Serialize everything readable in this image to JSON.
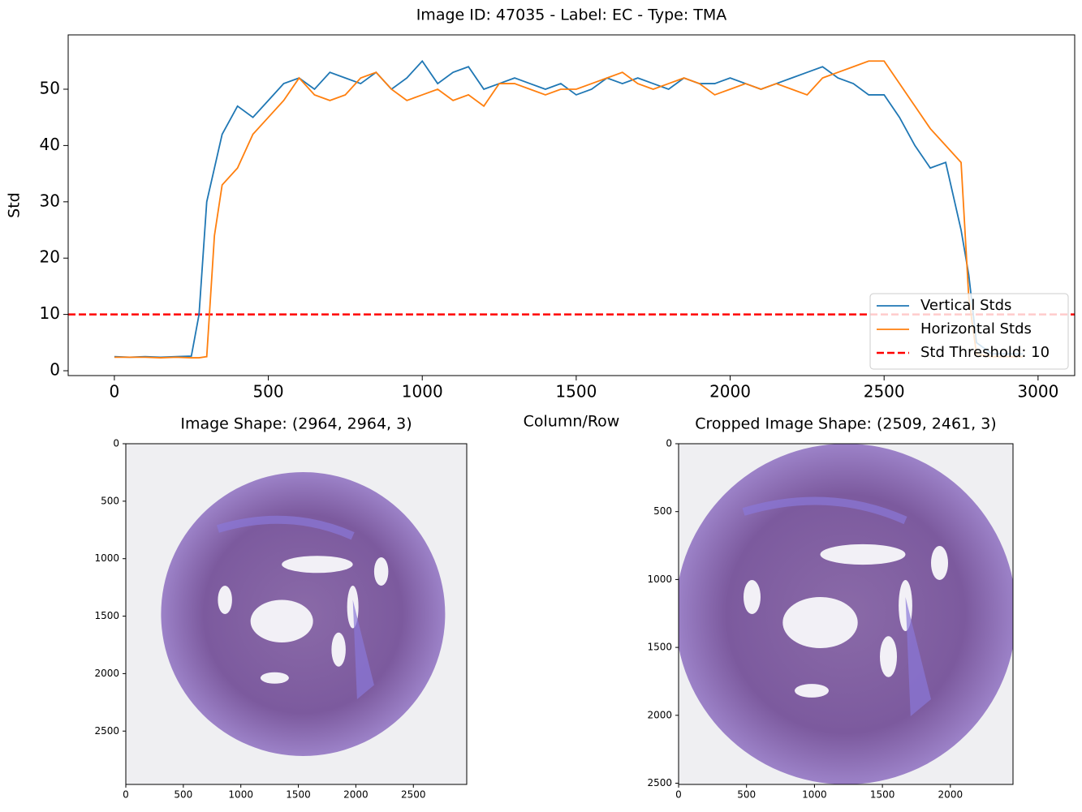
{
  "chart_data": [
    {
      "type": "line",
      "title": "Image ID: 47035 - Label: EC - Type: TMA",
      "x_label": "Column/Row",
      "y_label": "Std",
      "x": [
        0,
        50,
        100,
        150,
        200,
        250,
        275,
        300,
        325,
        350,
        400,
        450,
        500,
        550,
        600,
        650,
        700,
        750,
        800,
        850,
        900,
        950,
        1000,
        1050,
        1100,
        1150,
        1200,
        1250,
        1300,
        1350,
        1400,
        1450,
        1500,
        1550,
        1600,
        1650,
        1700,
        1750,
        1800,
        1850,
        1900,
        1950,
        2000,
        2050,
        2100,
        2150,
        2200,
        2250,
        2300,
        2350,
        2400,
        2450,
        2500,
        2550,
        2600,
        2650,
        2700,
        2750,
        2775,
        2800,
        2850,
        2900,
        2950
      ],
      "series": [
        {
          "name": "Vertical Stds",
          "color": "#1f77b4",
          "values": [
            2.5,
            2.4,
            2.5,
            2.4,
            2.5,
            2.6,
            10,
            30,
            36,
            42,
            47,
            45,
            48,
            51,
            52,
            50,
            53,
            52,
            51,
            53,
            50,
            52,
            55,
            51,
            53,
            54,
            50,
            51,
            52,
            51,
            50,
            51,
            49,
            50,
            52,
            51,
            52,
            51,
            50,
            52,
            51,
            51,
            52,
            51,
            50,
            51,
            52,
            53,
            54,
            52,
            51,
            49,
            49,
            45,
            40,
            36,
            37,
            25,
            17,
            5,
            3,
            3,
            3
          ]
        },
        {
          "name": "Horizontal Stds",
          "color": "#ff7f0e",
          "values": [
            2.4,
            2.4,
            2.4,
            2.3,
            2.4,
            2.3,
            2.3,
            2.5,
            24,
            33,
            36,
            42,
            45,
            48,
            52,
            49,
            48,
            49,
            52,
            53,
            50,
            48,
            49,
            50,
            48,
            49,
            47,
            51,
            51,
            50,
            49,
            50,
            50,
            51,
            52,
            53,
            51,
            50,
            51,
            52,
            51,
            49,
            50,
            51,
            50,
            51,
            50,
            49,
            52,
            53,
            54,
            55,
            55,
            51,
            47,
            43,
            40,
            37,
            13,
            3,
            2.5,
            2.5,
            2.5
          ]
        }
      ],
      "hlines": [
        {
          "name": "Std Threshold: 10",
          "value": 10,
          "color": "#ff0000"
        }
      ],
      "xlim": [
        -150,
        3119
      ],
      "ylim": [
        -0.86,
        59.65
      ],
      "xticks": [
        0,
        500,
        1000,
        1500,
        2000,
        2500,
        3000
      ],
      "yticks": [
        0,
        10,
        20,
        30,
        40,
        50
      ],
      "legend": "lower right"
    },
    {
      "type": "image",
      "title": "Image Shape: (2964, 2964, 3)",
      "xlim": [
        0,
        2964
      ],
      "ylim": [
        2964,
        0
      ],
      "xticks": [
        0,
        500,
        1000,
        1500,
        2000,
        2500
      ],
      "yticks": [
        0,
        500,
        1000,
        1500,
        2000,
        2500
      ]
    },
    {
      "type": "image",
      "title": "Cropped Image Shape: (2509, 2461, 3)",
      "xlim": [
        0,
        2461
      ],
      "ylim": [
        2509,
        0
      ],
      "xticks": [
        0,
        500,
        1000,
        1500,
        2000
      ],
      "yticks": [
        0,
        500,
        1000,
        1500,
        2000,
        2500
      ]
    }
  ]
}
